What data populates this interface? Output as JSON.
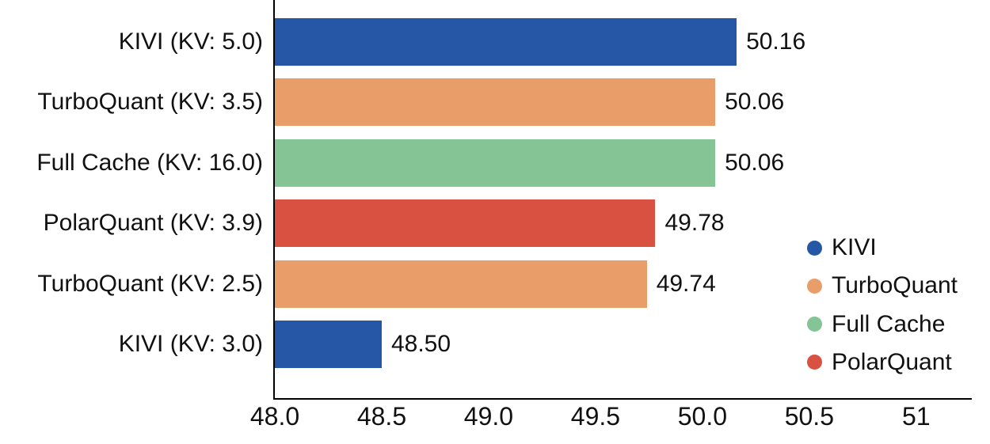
{
  "chart_data": {
    "type": "bar",
    "orientation": "horizontal",
    "title": "",
    "categories": [
      "KIVI (KV: 5.0)",
      "TurboQuant (KV: 3.5)",
      "Full Cache (KV: 16.0)",
      "PolarQuant (KV: 3.9)",
      "TurboQuant (KV: 2.5)",
      "KIVI (KV: 3.0)"
    ],
    "values": [
      50.16,
      50.06,
      50.06,
      49.78,
      49.74,
      48.5
    ],
    "value_labels": [
      "50.16",
      "50.06",
      "50.06",
      "49.78",
      "49.74",
      "48.50"
    ],
    "bar_series": [
      "KIVI",
      "TurboQuant",
      "Full Cache",
      "PolarQuant",
      "TurboQuant",
      "KIVI"
    ],
    "series_colors": {
      "KIVI": "#2557A6",
      "TurboQuant": "#E99D68",
      "Full Cache": "#85C494",
      "PolarQuant": "#D85141"
    },
    "xlim": [
      48.0,
      51.26
    ],
    "x_ticks": [
      48.0,
      48.5,
      49.0,
      49.5,
      50.0,
      50.5,
      51.0
    ],
    "x_tick_labels": [
      "48.0",
      "48.5",
      "49.0",
      "49.5",
      "50.0",
      "50.5",
      "51"
    ],
    "grid": false,
    "legend_position": "right-bottom",
    "legend": [
      {
        "label": "KIVI",
        "color": "#2557A6"
      },
      {
        "label": "TurboQuant",
        "color": "#E99D68"
      },
      {
        "label": "Full Cache",
        "color": "#85C494"
      },
      {
        "label": "PolarQuant",
        "color": "#D85141"
      }
    ],
    "axis_color": "#000000",
    "text_color": "#111111",
    "background_color": "#ffffff"
  }
}
